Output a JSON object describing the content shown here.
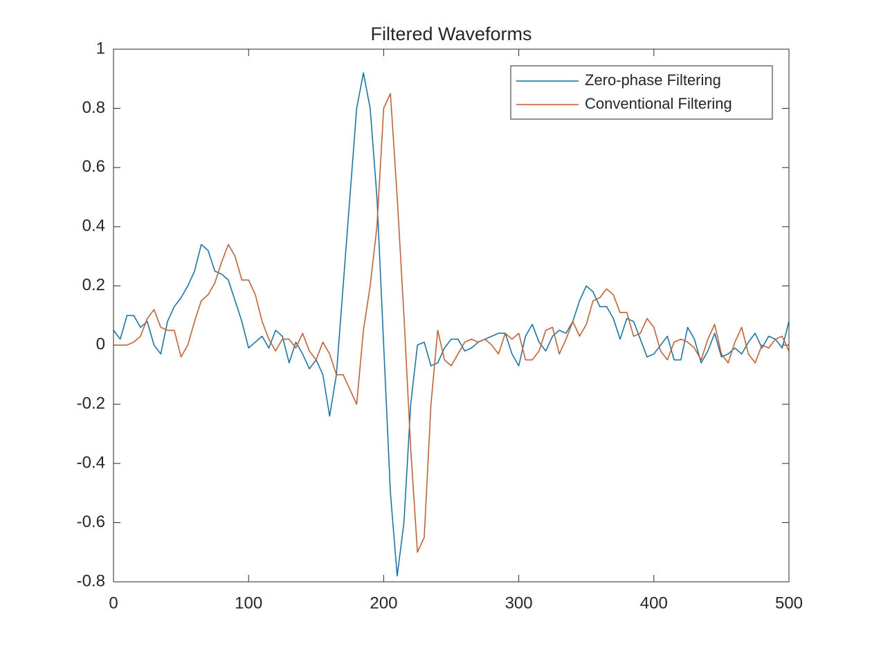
{
  "chart_data": {
    "type": "line",
    "title": "Filtered Waveforms",
    "x": [
      0,
      5,
      10,
      15,
      20,
      25,
      30,
      35,
      40,
      45,
      50,
      55,
      60,
      65,
      70,
      75,
      80,
      85,
      90,
      95,
      100,
      105,
      110,
      115,
      120,
      125,
      130,
      135,
      140,
      145,
      150,
      155,
      160,
      165,
      170,
      175,
      180,
      185,
      190,
      195,
      200,
      205,
      210,
      215,
      220,
      225,
      230,
      235,
      240,
      245,
      250,
      255,
      260,
      265,
      270,
      275,
      280,
      285,
      290,
      295,
      300,
      305,
      310,
      315,
      320,
      325,
      330,
      335,
      340,
      345,
      350,
      355,
      360,
      365,
      370,
      375,
      380,
      385,
      390,
      395,
      400,
      405,
      410,
      415,
      420,
      425,
      430,
      435,
      440,
      445,
      450,
      455,
      460,
      465,
      470,
      475,
      480,
      485,
      490,
      495,
      500
    ],
    "series": [
      {
        "name": "Zero-phase Filtering",
        "color": "#0072BD",
        "values": [
          0.05,
          0.02,
          0.1,
          0.1,
          0.06,
          0.08,
          0.0,
          -0.03,
          0.08,
          0.13,
          0.16,
          0.2,
          0.25,
          0.34,
          0.32,
          0.25,
          0.24,
          0.22,
          0.15,
          0.08,
          -0.01,
          0.01,
          0.03,
          -0.01,
          0.05,
          0.03,
          -0.06,
          0.01,
          -0.03,
          -0.08,
          -0.05,
          -0.1,
          -0.24,
          -0.1,
          0.2,
          0.5,
          0.8,
          0.92,
          0.8,
          0.5,
          0.0,
          -0.5,
          -0.78,
          -0.6,
          -0.2,
          0.0,
          0.01,
          -0.07,
          -0.06,
          -0.01,
          0.02,
          0.02,
          -0.02,
          -0.01,
          0.01,
          0.02,
          0.03,
          0.04,
          0.04,
          -0.03,
          -0.07,
          0.03,
          0.07,
          0.01,
          -0.02,
          0.03,
          0.05,
          0.04,
          0.08,
          0.15,
          0.2,
          0.18,
          0.13,
          0.13,
          0.09,
          0.02,
          0.09,
          0.08,
          0.02,
          -0.04,
          -0.03,
          0.0,
          0.03,
          -0.05,
          -0.05,
          0.06,
          0.02,
          -0.06,
          -0.02,
          0.04,
          -0.04,
          -0.03,
          -0.01,
          -0.03,
          0.01,
          0.04,
          -0.01,
          0.03,
          0.02,
          -0.01,
          0.08
        ]
      },
      {
        "name": "Conventional Filtering",
        "color": "#D95319",
        "values": [
          0,
          0,
          0.0,
          0.01,
          0.03,
          0.09,
          0.12,
          0.06,
          0.05,
          0.05,
          -0.04,
          0.0,
          0.08,
          0.15,
          0.17,
          0.21,
          0.28,
          0.34,
          0.3,
          0.22,
          0.22,
          0.17,
          0.08,
          0.02,
          -0.02,
          0.02,
          0.02,
          -0.01,
          0.04,
          -0.02,
          -0.05,
          0.01,
          -0.03,
          -0.1,
          -0.1,
          -0.15,
          -0.2,
          0.05,
          0.2,
          0.4,
          0.8,
          0.85,
          0.5,
          0.1,
          -0.35,
          -0.7,
          -0.65,
          -0.2,
          0.05,
          -0.05,
          -0.07,
          -0.03,
          0.01,
          0.02,
          0.01,
          0.02,
          0.0,
          -0.03,
          0.04,
          0.02,
          0.04,
          -0.05,
          -0.05,
          -0.02,
          0.05,
          0.06,
          -0.03,
          0.02,
          0.08,
          0.03,
          0.07,
          0.15,
          0.16,
          0.19,
          0.17,
          0.11,
          0.11,
          0.03,
          0.04,
          0.09,
          0.06,
          -0.02,
          -0.05,
          0.01,
          0.02,
          0.01,
          -0.01,
          -0.05,
          0.02,
          0.07,
          -0.03,
          -0.06,
          0.01,
          0.06,
          -0.03,
          -0.06,
          0.0,
          -0.01,
          0.02,
          0.03,
          -0.02
        ]
      }
    ],
    "xlim": [
      0,
      500
    ],
    "xticks": [
      0,
      100,
      200,
      300,
      400,
      500
    ],
    "ylim": [
      -0.8,
      1
    ],
    "yticks": [
      -0.8,
      -0.6,
      -0.4,
      -0.2,
      0,
      0.2,
      0.4,
      0.6,
      0.8,
      1
    ],
    "legend": "northeast",
    "grid": false
  }
}
